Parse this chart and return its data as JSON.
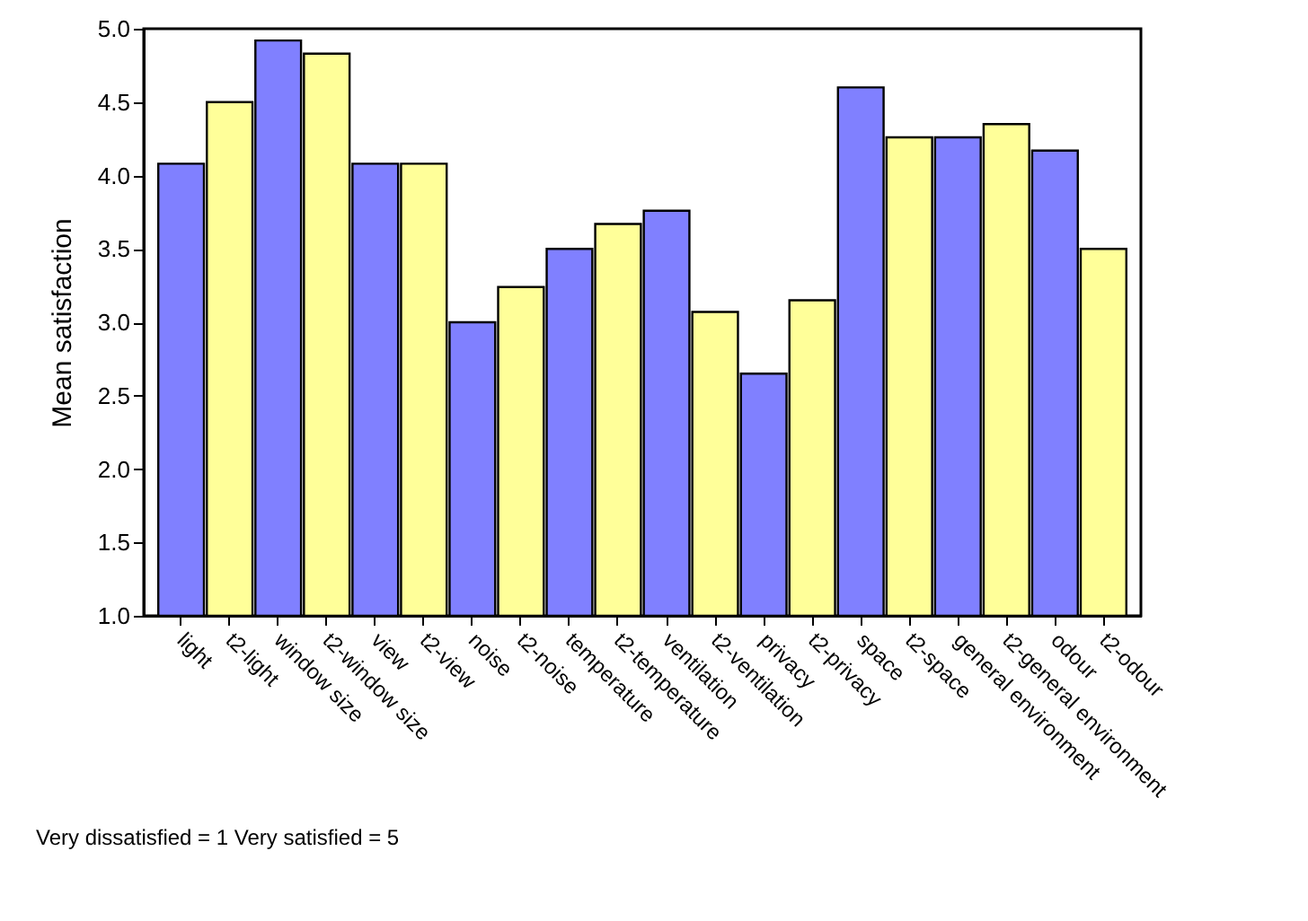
{
  "chart_data": {
    "type": "bar",
    "ylabel": "Mean satisfaction",
    "categories": [
      "light",
      "t2-light",
      "window size",
      "t2-window size",
      "view",
      "t2-view",
      "noise",
      "t2-noise",
      "temperature",
      "t2-temperature",
      "ventilation",
      "t2-ventilation",
      "privacy",
      "t2-privacy",
      "space",
      "t2-space",
      "general environment",
      "t2-general environment",
      "odour",
      "t2-odour"
    ],
    "values": [
      4.08,
      4.5,
      4.92,
      4.83,
      4.08,
      4.08,
      3.0,
      3.24,
      3.5,
      3.67,
      3.76,
      3.07,
      2.65,
      3.15,
      4.6,
      4.26,
      4.26,
      4.35,
      4.17,
      3.5
    ],
    "colors": [
      "#8080ff",
      "#ffff99",
      "#8080ff",
      "#ffff99",
      "#8080ff",
      "#ffff99",
      "#8080ff",
      "#ffff99",
      "#8080ff",
      "#ffff99",
      "#8080ff",
      "#ffff99",
      "#8080ff",
      "#ffff99",
      "#8080ff",
      "#ffff99",
      "#8080ff",
      "#ffff99",
      "#8080ff",
      "#ffff99"
    ],
    "ylim": [
      1,
      5
    ],
    "yticks": [
      {
        "value": 1,
        "label": "1.0"
      },
      {
        "value": 1.5,
        "label": "1.5"
      },
      {
        "value": 2,
        "label": "2.0"
      },
      {
        "value": 2.5,
        "label": "2.5"
      },
      {
        "value": 3,
        "label": "3.0"
      },
      {
        "value": 3.5,
        "label": "3.5"
      },
      {
        "value": 4,
        "label": "4.0"
      },
      {
        "value": 4.5,
        "label": "4.5"
      },
      {
        "value": 5,
        "label": "5.0"
      }
    ],
    "grid": false,
    "annotations": [
      "Very dissatisfied = 1   Very satisfied = 5"
    ]
  }
}
